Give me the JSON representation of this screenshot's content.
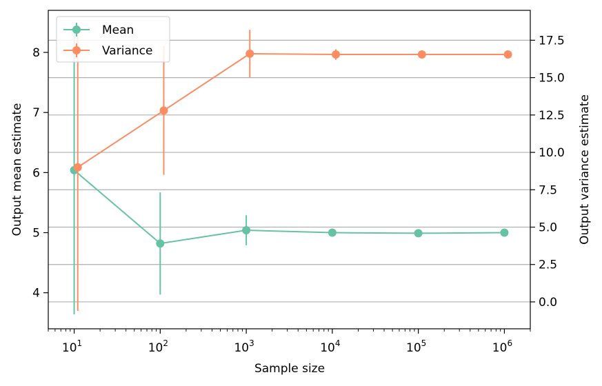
{
  "chart_data": {
    "type": "line",
    "x_scale": "log",
    "xlabel": "Sample size",
    "ylabel_left": "Output mean estimate",
    "ylabel_right": "Output variance estimate",
    "x": [
      10,
      100,
      1000,
      10000,
      100000,
      1000000
    ],
    "x_tick_labels": [
      {
        "base": "10",
        "exp": "1"
      },
      {
        "base": "10",
        "exp": "2"
      },
      {
        "base": "10",
        "exp": "3"
      },
      {
        "base": "10",
        "exp": "4"
      },
      {
        "base": "10",
        "exp": "5"
      },
      {
        "base": "10",
        "exp": "6"
      }
    ],
    "xlim": [
      5,
      2000000
    ],
    "ylim_left": [
      3.4,
      8.7
    ],
    "ylim_right": [
      -1.8,
      19.5
    ],
    "y_ticks_left": [
      "4",
      "5",
      "6",
      "7",
      "8"
    ],
    "y_ticks_right": [
      "0.0",
      "2.5",
      "5.0",
      "7.5",
      "10.0",
      "12.5",
      "15.0",
      "17.5"
    ],
    "grid": "horizontal gridlines at right-axis ticks",
    "legend": "top-left",
    "series": [
      {
        "name": "Mean",
        "axis": "left",
        "color": "#66c2a5",
        "x_offset_factor": 1.0,
        "values": [
          6.04,
          4.82,
          5.04,
          5.0,
          4.99,
          5.0
        ],
        "error": [
          2.4,
          0.85,
          0.25,
          0.05,
          0.03,
          0.02
        ]
      },
      {
        "name": "Variance",
        "axis": "right",
        "color": "#fc8d62",
        "x_offset_factor": 1.1,
        "values": [
          9.0,
          12.8,
          16.6,
          16.55,
          16.55,
          16.55
        ],
        "error": [
          9.6,
          4.3,
          1.6,
          0.35,
          0.15,
          0.05
        ]
      }
    ]
  }
}
